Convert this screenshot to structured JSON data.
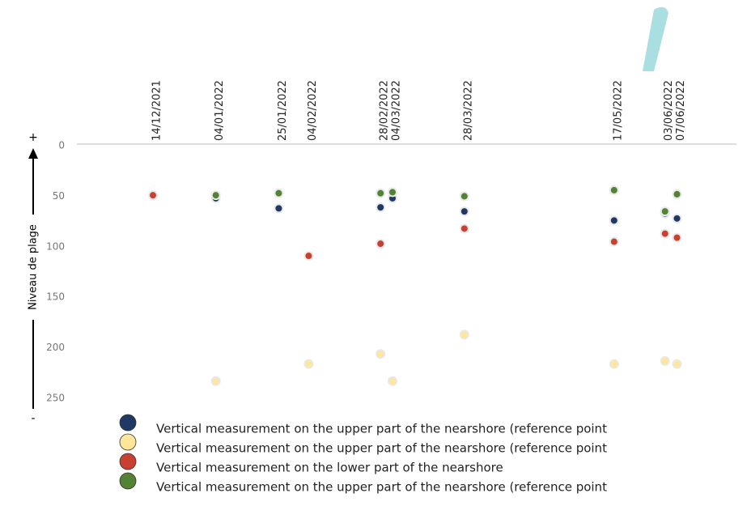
{
  "chart_data": {
    "type": "scatter",
    "y_label": "Niveau de plage",
    "y_top_sign": "+",
    "y_bottom_sign": "-",
    "x": [
      "14/12/2021",
      "04/01/2022",
      "25/01/2022",
      "04/02/2022",
      "28/02/2022",
      "04/03/2022",
      "28/03/2022",
      "17/05/2022",
      "03/06/2022",
      "07/06/2022"
    ],
    "ylim": [
      0,
      250
    ],
    "yticks": [
      0,
      50,
      100,
      150,
      200,
      250
    ],
    "y_inverted": true,
    "series": [
      {
        "name": "Vertical measurement on the upper part of the nearshore (reference point",
        "color": "#1f3864",
        "values": [
          null,
          52,
          62,
          null,
          61,
          52,
          65,
          74,
          67,
          72
        ]
      },
      {
        "name": "Vertical measurement on the upper part of the nearshore (reference point",
        "color": "#ffe699",
        "values": [
          null,
          233,
          null,
          216,
          206,
          233,
          187,
          216,
          213,
          216
        ]
      },
      {
        "name": "Vertical measurement on the lower part of the nearshore",
        "color": "#c8402f",
        "values": [
          49,
          null,
          null,
          109,
          97,
          null,
          82,
          95,
          87,
          91
        ]
      },
      {
        "name": "Vertical measurement on the upper part of the nearshore (reference point",
        "color": "#548235",
        "values": [
          null,
          49,
          47,
          null,
          47,
          46,
          50,
          44,
          65,
          48
        ]
      }
    ]
  }
}
